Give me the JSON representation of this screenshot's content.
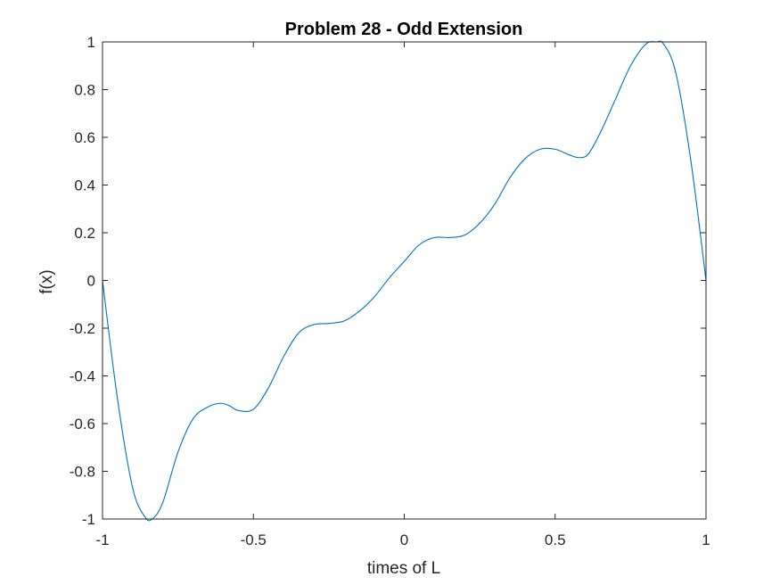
{
  "chart_data": {
    "type": "line",
    "title": "Problem 28 - Odd Extension",
    "xlabel": "times of L",
    "ylabel": "f(x)",
    "xlim": [
      -1,
      1
    ],
    "ylim": [
      -1,
      1
    ],
    "grid": false,
    "colors": {
      "line": "#0072BD",
      "axis": "#262626",
      "background": "#ffffff"
    },
    "xticks": [
      -1,
      -0.5,
      0,
      0.5,
      1
    ],
    "xtick_labels": [
      "-1",
      "-0.5",
      "0",
      "0.5",
      "1"
    ],
    "yticks": [
      -1,
      -0.8,
      -0.6,
      -0.4,
      -0.2,
      0,
      0.2,
      0.4,
      0.6,
      0.8,
      1
    ],
    "ytick_labels": [
      "-1",
      "-0.8",
      "-0.6",
      "-0.4",
      "-0.2",
      "0",
      "0.2",
      "0.4",
      "0.6",
      "0.8",
      "1"
    ],
    "series": [
      {
        "x": [
          -1,
          -0.95,
          -0.9,
          -0.86,
          -0.835,
          -0.8,
          -0.75,
          -0.7,
          -0.65,
          -0.61,
          -0.58,
          -0.55,
          -0.5,
          -0.45,
          -0.4,
          -0.35,
          -0.3,
          -0.25,
          -0.2,
          -0.15,
          -0.1,
          -0.05,
          0,
          0.05,
          0.1,
          0.15,
          0.2,
          0.25,
          0.3,
          0.35,
          0.4,
          0.45,
          0.5,
          0.55,
          0.58,
          0.61,
          0.65,
          0.7,
          0.75,
          0.8,
          0.835,
          0.86,
          0.9,
          0.95,
          1
        ],
        "y": [
          0,
          -0.5,
          -0.87,
          -0.99,
          -1.0,
          -0.93,
          -0.72,
          -0.58,
          -0.53,
          -0.515,
          -0.525,
          -0.545,
          -0.54,
          -0.45,
          -0.32,
          -0.22,
          -0.185,
          -0.18,
          -0.17,
          -0.13,
          -0.07,
          0.01,
          0.08,
          0.15,
          0.18,
          0.18,
          0.19,
          0.24,
          0.32,
          0.43,
          0.51,
          0.55,
          0.55,
          0.525,
          0.515,
          0.53,
          0.62,
          0.76,
          0.9,
          0.99,
          1.0,
          0.99,
          0.87,
          0.5,
          0
        ]
      }
    ]
  }
}
